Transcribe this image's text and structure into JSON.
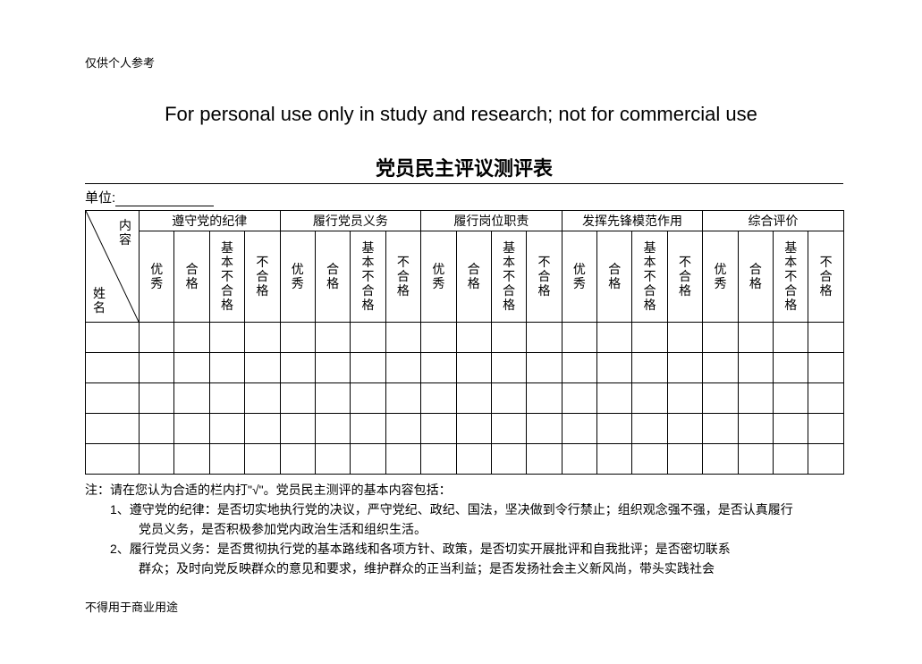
{
  "header": {
    "top_note": "仅供个人参考",
    "english_line": "For personal use only in study and research; not for commercial use",
    "title": "党员民主评议测评表",
    "unit_label": "单位:",
    "bottom_note": "不得用于商业用途"
  },
  "table": {
    "diag_top": "内容",
    "diag_left": "姓名",
    "groups": [
      "遵守党的纪律",
      "履行党员义务",
      "履行岗位职责",
      "发挥先锋模范作用",
      "综合评价"
    ],
    "sub_headers": [
      "优秀",
      "合格",
      "基本不合格",
      "不合格"
    ],
    "empty_rows": 5,
    "border_color": "#000000",
    "background_color": "#ffffff",
    "header_fontsize": 14,
    "sub_fontsize": 14
  },
  "notes": {
    "line0": "注：请在您认为合适的栏内打\"√\"。党员民主测评的基本内容包括：",
    "line1": "1、遵守党的纪律：是否切实地执行党的决议，严守党纪、政纪、国法，坚决做到令行禁止；组织观念强不强，是否认真履行",
    "line1b": "党员义务，是否积极参加党内政治生活和组织生活。",
    "line2": "2、履行党员义务：是否贯彻执行党的基本路线和各项方针、政策，是否切实开展批评和自我批评；是否密切联系",
    "line2b": "群众；及时向党反映群众的意见和要求，维护群众的正当利益；是否发扬社会主义新风尚，带头实践社会"
  }
}
